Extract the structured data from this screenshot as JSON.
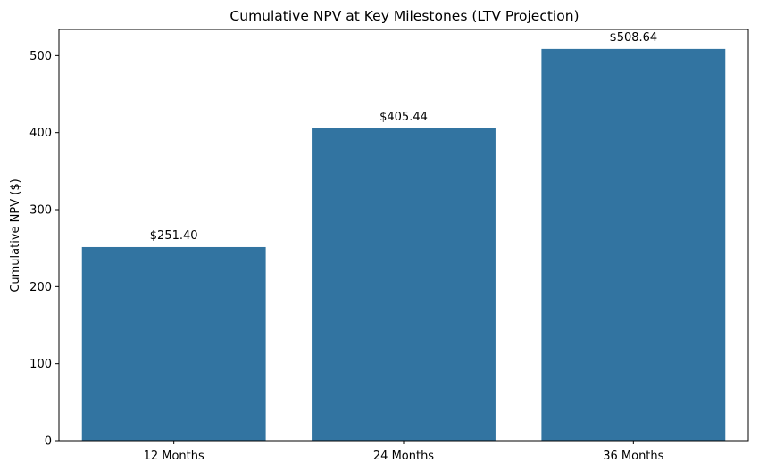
{
  "chart_data": {
    "type": "bar",
    "title": "Cumulative NPV at Key Milestones (LTV Projection)",
    "xlabel": "",
    "ylabel": "Cumulative NPV ($)",
    "categories": [
      "12 Months",
      "24 Months",
      "36 Months"
    ],
    "values": [
      251.4,
      405.44,
      508.64
    ],
    "data_labels": [
      "$251.40",
      "$405.44",
      "$508.64"
    ],
    "ylim": [
      0,
      534
    ],
    "yticks": [
      0,
      100,
      200,
      300,
      400,
      500
    ],
    "ytick_labels": [
      "0",
      "100",
      "200",
      "300",
      "400",
      "500"
    ],
    "bar_color": "#3274a1",
    "grid": false,
    "legend": "none"
  }
}
